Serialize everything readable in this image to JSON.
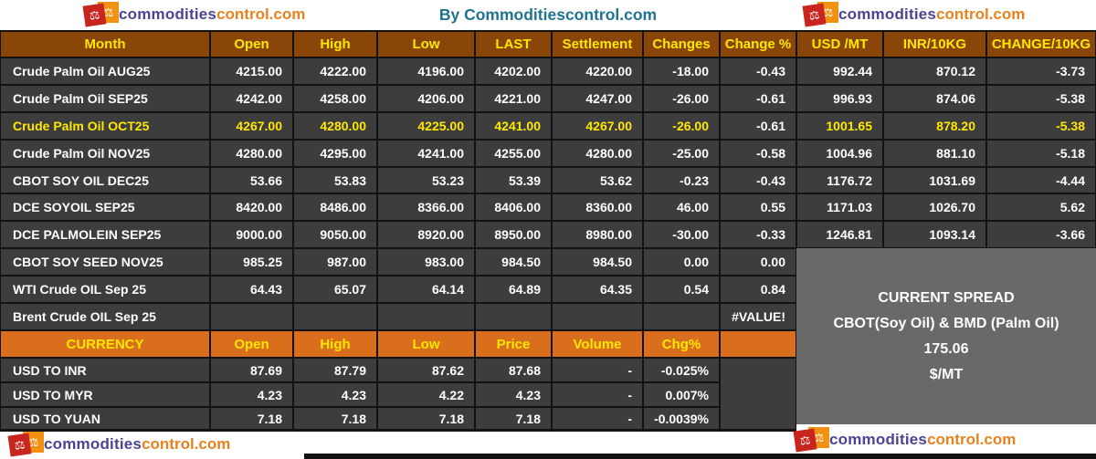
{
  "top_bar": {
    "title": "By Commoditiescontrol.com"
  },
  "logo": {
    "part1": "commodities",
    "part2": "control.com",
    "icon": "balance-scale"
  },
  "futures_table": {
    "headers": [
      "Month",
      "Open",
      "High",
      "Low",
      "LAST",
      "Settlement",
      "Changes",
      "Change %",
      "USD /MT",
      "INR/10KG",
      "CHANGE/10KG"
    ],
    "rows": [
      {
        "label": "Crude Palm Oil AUG25",
        "highlight": false,
        "values": [
          "4215.00",
          "4222.00",
          "4196.00",
          "4202.00",
          "4220.00",
          "-18.00",
          "-0.43",
          "992.44",
          "870.12",
          "-3.73"
        ]
      },
      {
        "label": "Crude Palm Oil SEP25",
        "highlight": false,
        "values": [
          "4242.00",
          "4258.00",
          "4206.00",
          "4221.00",
          "4247.00",
          "-26.00",
          "-0.61",
          "996.93",
          "874.06",
          "-5.38"
        ]
      },
      {
        "label": "Crude Palm Oil OCT25",
        "highlight": true,
        "values": [
          "4267.00",
          "4280.00",
          "4225.00",
          "4241.00",
          "4267.00",
          "-26.00",
          "-0.61",
          "1001.65",
          "878.20",
          "-5.38"
        ]
      },
      {
        "label": "Crude Palm Oil NOV25",
        "highlight": false,
        "values": [
          "4280.00",
          "4295.00",
          "4241.00",
          "4255.00",
          "4280.00",
          "-25.00",
          "-0.58",
          "1004.96",
          "881.10",
          "-5.18"
        ]
      },
      {
        "label": "CBOT SOY OIL DEC25",
        "highlight": false,
        "values": [
          "53.66",
          "53.83",
          "53.23",
          "53.39",
          "53.62",
          "-0.23",
          "-0.43",
          "1176.72",
          "1031.69",
          "-4.44"
        ]
      },
      {
        "label": "DCE SOYOIL SEP25",
        "highlight": false,
        "values": [
          "8420.00",
          "8486.00",
          "8366.00",
          "8406.00",
          "8360.00",
          "46.00",
          "0.55",
          "1171.03",
          "1026.70",
          "5.62"
        ]
      },
      {
        "label": "DCE PALMOLEIN SEP25",
        "highlight": false,
        "values": [
          "9000.00",
          "9050.00",
          "8920.00",
          "8950.00",
          "8980.00",
          "-30.00",
          "-0.33",
          "1246.81",
          "1093.14",
          "-3.66"
        ]
      },
      {
        "label": "CBOT SOY SEED NOV25",
        "highlight": false,
        "values": [
          "985.25",
          "987.00",
          "983.00",
          "984.50",
          "984.50",
          "0.00",
          "0.00"
        ]
      },
      {
        "label": "WTI Crude OIL Sep 25",
        "highlight": false,
        "values": [
          "64.43",
          "65.07",
          "64.14",
          "64.89",
          "64.35",
          "0.54",
          "0.84"
        ]
      },
      {
        "label": "Brent Crude OIL Sep 25",
        "highlight": false,
        "values": [
          "",
          "",
          "",
          "",
          "",
          "",
          "#VALUE!"
        ]
      }
    ]
  },
  "currency_table": {
    "headers": [
      "CURRENCY",
      "Open",
      "High",
      "Low",
      "Price",
      "Volume",
      "Chg%",
      ""
    ],
    "rows": [
      {
        "label": "USD TO INR",
        "values": [
          "87.69",
          "87.79",
          "87.62",
          "87.68",
          "-",
          "-0.025%"
        ]
      },
      {
        "label": "USD TO MYR",
        "values": [
          "4.23",
          "4.23",
          "4.22",
          "4.23",
          "-",
          "0.007%"
        ]
      },
      {
        "label": "USD TO YUAN",
        "values": [
          "7.18",
          "7.18",
          "7.18",
          "7.18",
          "-",
          "-0.0039%"
        ]
      }
    ]
  },
  "spread_box": {
    "lines": [
      "CURRENT SPREAD",
      "CBOT(Soy Oil) & BMD (Palm Oil)",
      "175.06",
      "$/MT"
    ]
  },
  "colors": {
    "header_brown": "#8A4509",
    "currency_orange": "#D96E1C",
    "row_charcoal": "#3D3D3D",
    "spread_gray": "#696969",
    "highlight_yellow": "#FFE800",
    "title_teal": "#1F7391",
    "logo_red": "#C9251F",
    "logo_orange": "#F29111",
    "logo_purple": "#4C4394",
    "logo_text_orange": "#E8821E",
    "border_black": "#121212",
    "text_white": "#FFFFFF"
  }
}
